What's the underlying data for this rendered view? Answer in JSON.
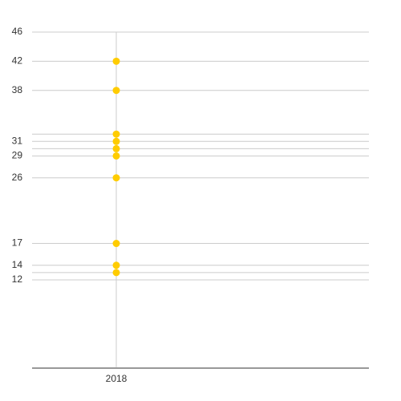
{
  "chart_data": {
    "type": "dot",
    "categories": [
      "2018",
      null
    ],
    "values": [
      [
        42,
        38,
        32,
        31,
        30,
        29,
        26,
        17,
        14,
        13
      ],
      []
    ],
    "color": "#ffcc00",
    "ylim": [
      0,
      46
    ],
    "yticks": [
      12,
      {
        "value": 13,
        "label": null
      },
      14,
      17,
      26,
      29,
      {
        "value": 30,
        "label": null
      },
      31,
      {
        "value": 32,
        "label": null
      },
      38,
      42,
      46
    ],
    "grid": true
  }
}
